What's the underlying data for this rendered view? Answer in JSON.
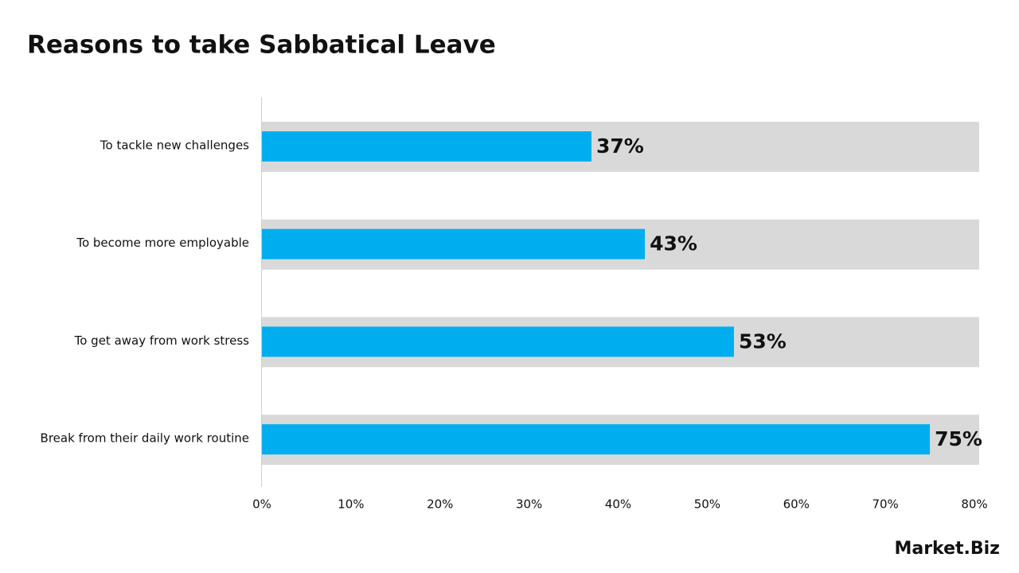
{
  "chart_data": {
    "type": "hbar",
    "title": "Reasons to take Sabbatical Leave",
    "categories": [
      "To tackle new challenges",
      "To become more employable",
      "To get away from work stress",
      "Break from their daily work routine"
    ],
    "values": [
      37,
      43,
      53,
      75
    ],
    "value_labels": [
      "37%",
      "43%",
      "53%",
      "75%"
    ],
    "color": "#00aeef",
    "xlim": [
      0,
      80
    ],
    "xticks": [
      {
        "value": 0,
        "label": "0%"
      },
      {
        "value": 10,
        "label": "10%"
      },
      {
        "value": 20,
        "label": "20%"
      },
      {
        "value": 30,
        "label": "30%"
      },
      {
        "value": 40,
        "label": "40%"
      },
      {
        "value": 50,
        "label": "50%"
      },
      {
        "value": 60,
        "label": "60%"
      },
      {
        "value": 70,
        "label": "70%"
      },
      {
        "value": 80,
        "label": "80%"
      }
    ],
    "brand": "Market.Biz"
  }
}
